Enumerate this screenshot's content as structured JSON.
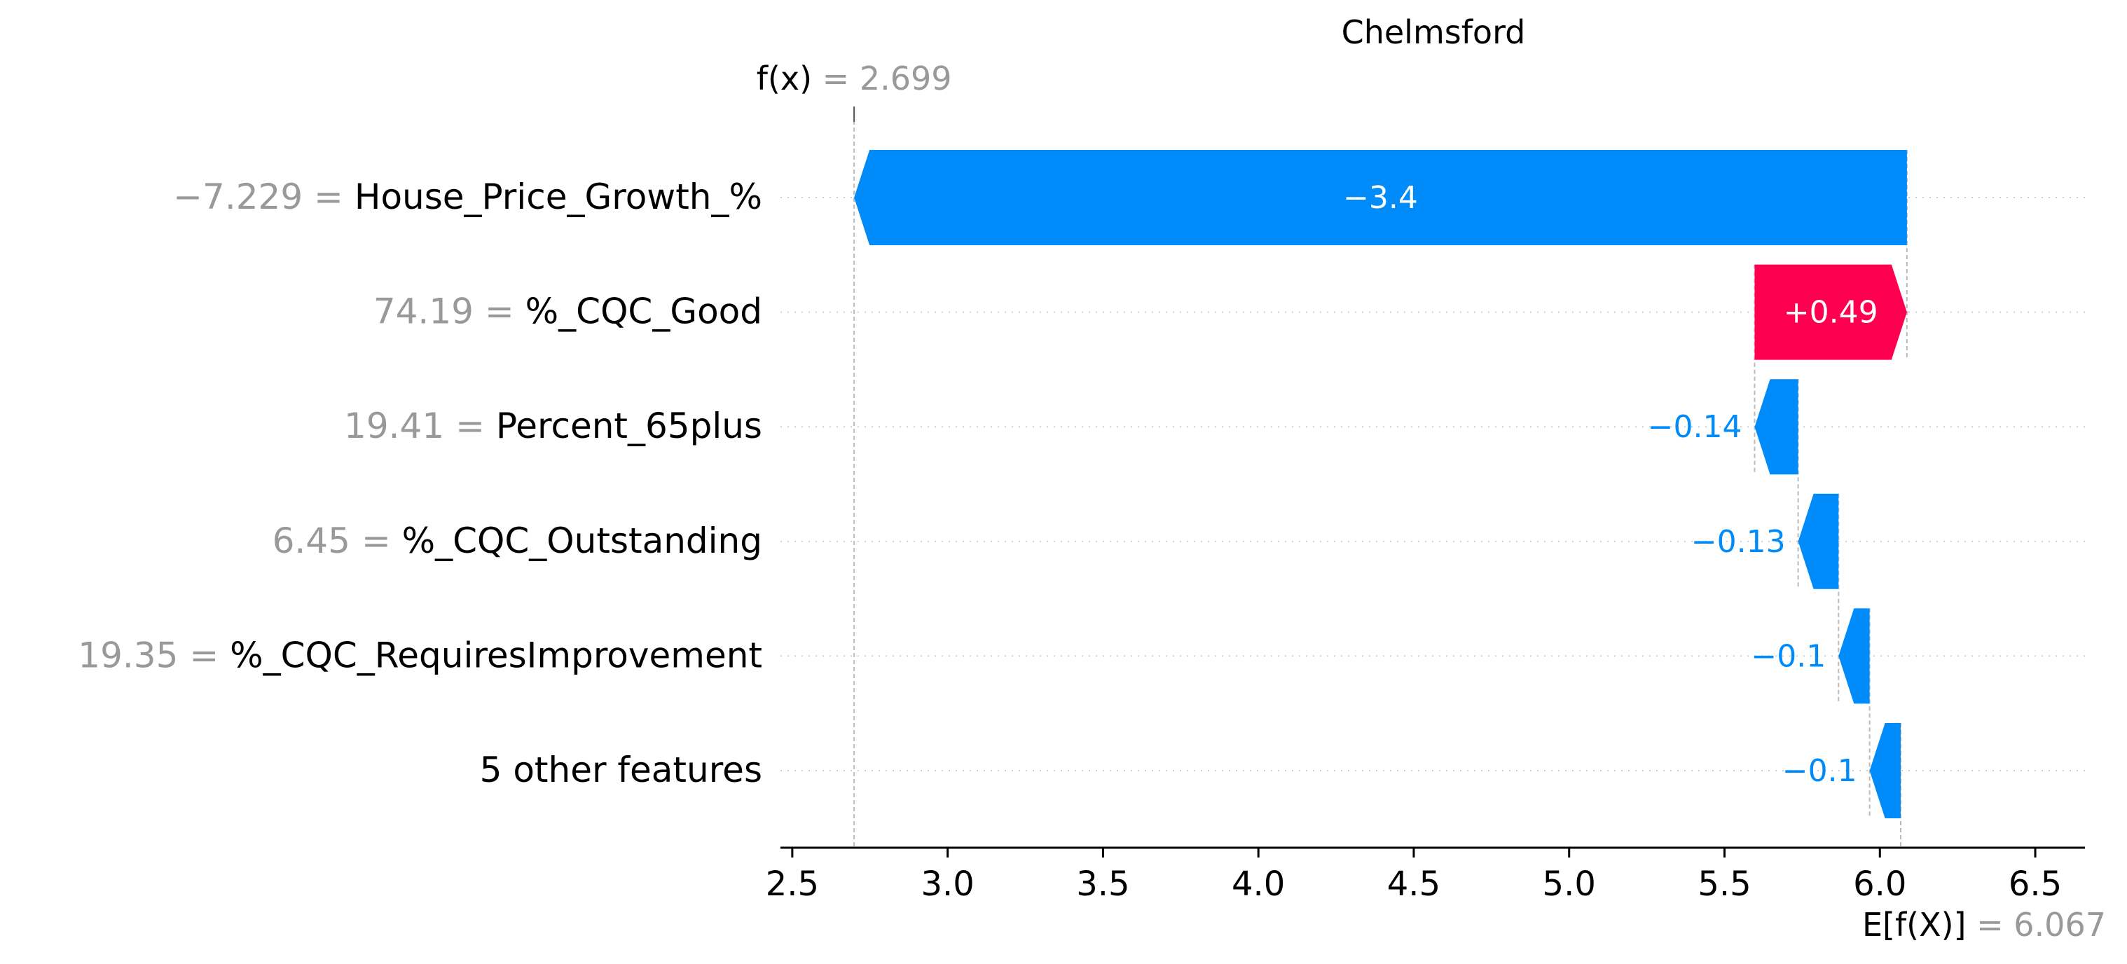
{
  "chart_data": {
    "type": "waterfall",
    "title": "Chelmsford",
    "fx_label": "f(x)",
    "fx_value": 2.699,
    "fx_value_text": "2.699",
    "ex_label": "E[f(X)]",
    "ex_value": 6.067,
    "ex_value_text": "6.067",
    "x_ticks": [
      2.5,
      3.0,
      3.5,
      4.0,
      4.5,
      5.0,
      5.5,
      6.0,
      6.5
    ],
    "xlim": [
      2.48,
      6.66
    ],
    "rows": [
      {
        "value_label": "−7.229",
        "feature": "House_Price_Growth_%",
        "contribution": -3.368,
        "label": "−3.4"
      },
      {
        "value_label": "74.19",
        "feature": "%_CQC_Good",
        "contribution": 0.49,
        "label": "+0.49"
      },
      {
        "value_label": "19.41",
        "feature": "Percent_65plus",
        "contribution": -0.14,
        "label": "−0.14"
      },
      {
        "value_label": "6.45",
        "feature": "%_CQC_Outstanding",
        "contribution": -0.13,
        "label": "−0.13"
      },
      {
        "value_label": "19.35",
        "feature": "%_CQC_RequiresImprovement",
        "contribution": -0.1,
        "label": "−0.1"
      },
      {
        "value_label": "",
        "feature": "5 other features",
        "contribution": -0.1,
        "label": "−0.1"
      }
    ],
    "colors": {
      "negative": "#008bfb",
      "positive": "#ff0051",
      "value_gray": "#999999",
      "text": "#000000"
    }
  }
}
